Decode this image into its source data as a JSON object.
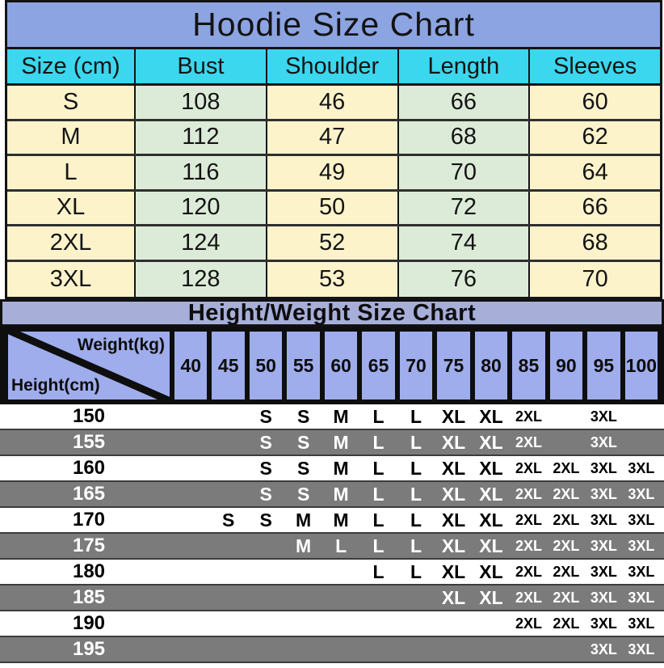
{
  "chart_data": [
    {
      "type": "table",
      "title": "Hoodie Size Chart",
      "columns": [
        "Size (cm)",
        "Bust",
        "Shoulder",
        "Length",
        "Sleeves"
      ],
      "rows": [
        [
          "S",
          "108",
          "46",
          "66",
          "60"
        ],
        [
          "M",
          "112",
          "47",
          "68",
          "62"
        ],
        [
          "L",
          "116",
          "49",
          "70",
          "64"
        ],
        [
          "XL",
          "120",
          "50",
          "72",
          "66"
        ],
        [
          "2XL",
          "124",
          "52",
          "74",
          "68"
        ],
        [
          "3XL",
          "128",
          "53",
          "76",
          "70"
        ]
      ]
    },
    {
      "type": "table",
      "title": "Height/Weight Size Chart",
      "corner_labels": {
        "top_right": "Weight(kg)",
        "bottom_left": "Height(cm)"
      },
      "columns": [
        "40",
        "45",
        "50",
        "55",
        "60",
        "65",
        "70",
        "75",
        "80",
        "85",
        "90",
        "95",
        "100"
      ],
      "rows": [
        {
          "height": "150",
          "sizes": [
            "",
            "",
            "S",
            "S",
            "M",
            "L",
            "L",
            "XL",
            "XL",
            "2XL",
            "",
            "3XL",
            ""
          ]
        },
        {
          "height": "155",
          "sizes": [
            "",
            "",
            "S",
            "S",
            "M",
            "L",
            "L",
            "XL",
            "XL",
            "2XL",
            "",
            "3XL",
            ""
          ]
        },
        {
          "height": "160",
          "sizes": [
            "",
            "",
            "S",
            "S",
            "M",
            "L",
            "L",
            "XL",
            "XL",
            "2XL",
            "2XL",
            "3XL",
            "3XL"
          ]
        },
        {
          "height": "165",
          "sizes": [
            "",
            "",
            "S",
            "S",
            "M",
            "L",
            "L",
            "XL",
            "XL",
            "2XL",
            "2XL",
            "3XL",
            "3XL"
          ]
        },
        {
          "height": "170",
          "sizes": [
            "",
            "S",
            "S",
            "M",
            "M",
            "L",
            "L",
            "XL",
            "XL",
            "2XL",
            "2XL",
            "3XL",
            "3XL"
          ]
        },
        {
          "height": "175",
          "sizes": [
            "",
            "",
            "",
            "M",
            "L",
            "L",
            "L",
            "XL",
            "XL",
            "2XL",
            "2XL",
            "3XL",
            "3XL"
          ]
        },
        {
          "height": "180",
          "sizes": [
            "",
            "",
            "",
            "",
            "",
            "L",
            "L",
            "XL",
            "XL",
            "2XL",
            "2XL",
            "3XL",
            "3XL"
          ]
        },
        {
          "height": "185",
          "sizes": [
            "",
            "",
            "",
            "",
            "",
            "",
            "",
            "XL",
            "XL",
            "2XL",
            "2XL",
            "3XL",
            "3XL"
          ]
        },
        {
          "height": "190",
          "sizes": [
            "",
            "",
            "",
            "",
            "",
            "",
            "",
            "",
            "",
            "2XL",
            "2XL",
            "3XL",
            "3XL"
          ]
        },
        {
          "height": "195",
          "sizes": [
            "",
            "",
            "",
            "",
            "",
            "",
            "",
            "",
            "",
            "",
            "",
            "3XL",
            "3XL"
          ]
        }
      ]
    }
  ],
  "colors": {
    "title1_bg": "#8da4e2",
    "header_cyan": "#3ad7ee",
    "cell_cream": "#fdf3cb",
    "cell_green": "#dcebd8",
    "title2_bg": "#a7aed8",
    "weight_cell_bg": "#9fadec",
    "gray_row": "#7b7b7b",
    "black": "#0e0e0e"
  }
}
